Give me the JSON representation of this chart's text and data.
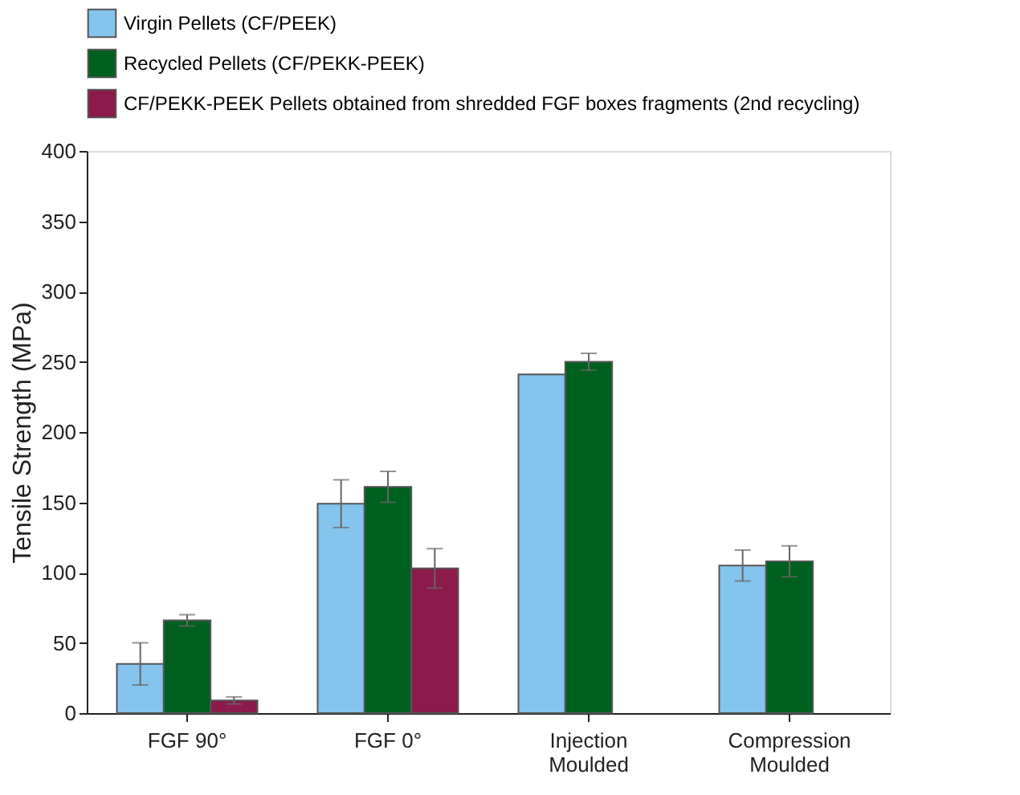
{
  "chart_data": {
    "type": "bar",
    "ylabel": "Tensile Strength (MPa)",
    "categories": [
      "FGF 90°",
      "FGF 0°",
      "Injection Moulded",
      "Compression Moulded"
    ],
    "series": [
      {
        "name": "Virgin Pellets (CF/PEEK)",
        "color": "#85c4ec",
        "values": [
          35,
          149,
          241,
          105
        ],
        "errors": [
          15,
          17,
          null,
          11
        ]
      },
      {
        "name": "Recycled Pellets (CF/PEKK-PEEK)",
        "color": "#00601f",
        "values": [
          66,
          161,
          250,
          108
        ],
        "errors": [
          4,
          11,
          6,
          11
        ]
      },
      {
        "name": "CF/PEKK-PEEK Pellets obtained from shredded FGF boxes fragments (2nd recycling)",
        "color": "#8c1a4a",
        "values": [
          9,
          103,
          null,
          null
        ],
        "errors": [
          2.5,
          14,
          null,
          null
        ]
      }
    ],
    "ylim": [
      0,
      400
    ],
    "yticks": [
      0,
      50,
      100,
      150,
      200,
      250,
      300,
      350,
      400
    ],
    "grid": false,
    "legend": "top"
  }
}
